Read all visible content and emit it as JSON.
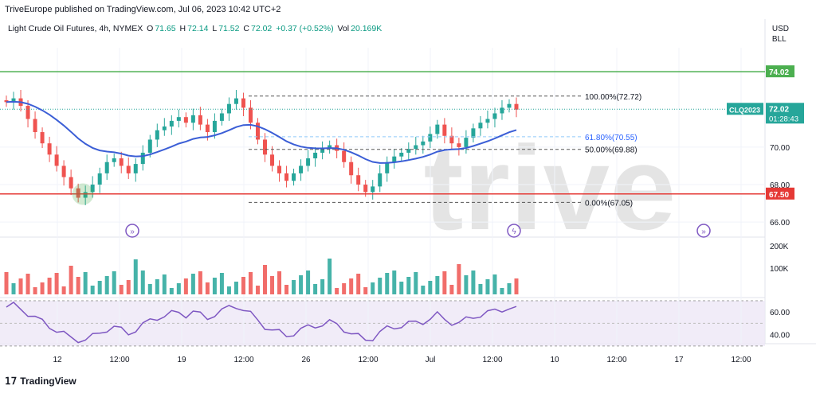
{
  "header": {
    "publisher": "TriveEurope published on TradingView.com, Jul 06, 2023 10:42 UTC+2"
  },
  "legend": {
    "symbol": "Light Crude Oil Futures, 4h, NYMEX",
    "o_label": "O",
    "o": "71.65",
    "h_label": "H",
    "h": "72.14",
    "l_label": "L",
    "l": "71.52",
    "c_label": "C",
    "c": "72.02",
    "change": "+0.37 (+0.52%)",
    "vol_label": "Vol",
    "vol": "20.169K"
  },
  "currency": {
    "ccy": "USD",
    "unit": "BLL"
  },
  "watermark": "trive",
  "footer": {
    "brand": "TradingView"
  },
  "colors": {
    "up": "#26a69a",
    "down": "#ef5350",
    "ma": "#3b5ed6",
    "rsi": "#7e57c2",
    "green_line": "#4caf50",
    "red_line": "#e53935"
  },
  "chart_data": {
    "type": "candlestick",
    "price_axis": {
      "ticks": [
        "66.00",
        "68.00",
        "70.00"
      ],
      "ylim": [
        65.2,
        75.3
      ]
    },
    "time_axis": {
      "ticks": [
        "12",
        "12:00",
        "19",
        "12:00",
        "26",
        "12:00",
        "Jul",
        "12:00",
        "10",
        "12:00",
        "17",
        "12:00"
      ]
    },
    "horizontal_lines": [
      {
        "price": 74.02,
        "label": "74.02",
        "color": "#4caf50"
      },
      {
        "price": 67.5,
        "label": "67.50",
        "color": "#e53935"
      }
    ],
    "fibonacci": [
      {
        "label": "100.00%(72.72)",
        "price": 72.72
      },
      {
        "label": "61.80%(70.55)",
        "price": 70.55
      },
      {
        "label": "50.00%(69.88)",
        "price": 69.88
      },
      {
        "label": "0.00%(67.05)",
        "price": 67.05
      }
    ],
    "last_price": {
      "symbol": "CLQ2023",
      "price": "72.02",
      "countdown": "01:28:43"
    },
    "volume_axis": {
      "ticks": [
        "200K",
        "100K"
      ]
    },
    "rsi_axis": {
      "ticks": [
        "60.00",
        "40.00"
      ],
      "ylim": [
        32,
        70
      ],
      "band": [
        30,
        70
      ]
    }
  }
}
